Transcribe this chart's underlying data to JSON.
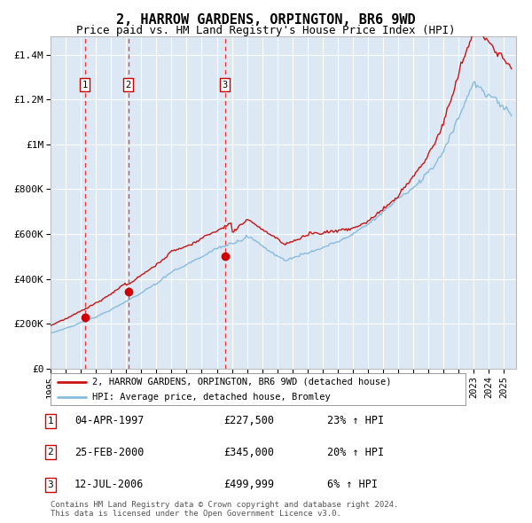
{
  "title": "2, HARROW GARDENS, ORPINGTON, BR6 9WD",
  "subtitle": "Price paid vs. HM Land Registry's House Price Index (HPI)",
  "title_fontsize": 11,
  "subtitle_fontsize": 9,
  "background_color": "#ffffff",
  "plot_bg_color": "#dce9f5",
  "grid_color": "#ffffff",
  "ylabel_ticks": [
    "£0",
    "£200K",
    "£400K",
    "£600K",
    "£800K",
    "£1M",
    "£1.2M",
    "£1.4M"
  ],
  "ytick_vals": [
    0,
    200000,
    400000,
    600000,
    800000,
    1000000,
    1200000,
    1400000
  ],
  "ylim": [
    0,
    1480000
  ],
  "xlim_start": 1995.0,
  "xlim_end": 2025.8,
  "xtick_years": [
    1995,
    1996,
    1997,
    1998,
    1999,
    2000,
    2001,
    2002,
    2003,
    2004,
    2005,
    2006,
    2007,
    2008,
    2009,
    2010,
    2011,
    2012,
    2013,
    2014,
    2015,
    2016,
    2017,
    2018,
    2019,
    2020,
    2021,
    2022,
    2023,
    2024,
    2025
  ],
  "sale_dates": [
    1997.26,
    2000.15,
    2006.53
  ],
  "sale_prices": [
    227500,
    345000,
    499999
  ],
  "sale_labels": [
    "1",
    "2",
    "3"
  ],
  "dashed_line_color": "#ee3333",
  "sale_marker_color": "#cc0000",
  "hpi_line_color": "#88bbdd",
  "price_line_color": "#cc1111",
  "legend_entries": [
    "2, HARROW GARDENS, ORPINGTON, BR6 9WD (detached house)",
    "HPI: Average price, detached house, Bromley"
  ],
  "table_rows": [
    {
      "label": "1",
      "date": "04-APR-1997",
      "price": "£227,500",
      "hpi": "23% ↑ HPI"
    },
    {
      "label": "2",
      "date": "25-FEB-2000",
      "price": "£345,000",
      "hpi": "20% ↑ HPI"
    },
    {
      "label": "3",
      "date": "12-JUL-2006",
      "price": "£499,999",
      "hpi": "6% ↑ HPI"
    }
  ],
  "footnote": "Contains HM Land Registry data © Crown copyright and database right 2024.\nThis data is licensed under the Open Government Licence v3.0."
}
